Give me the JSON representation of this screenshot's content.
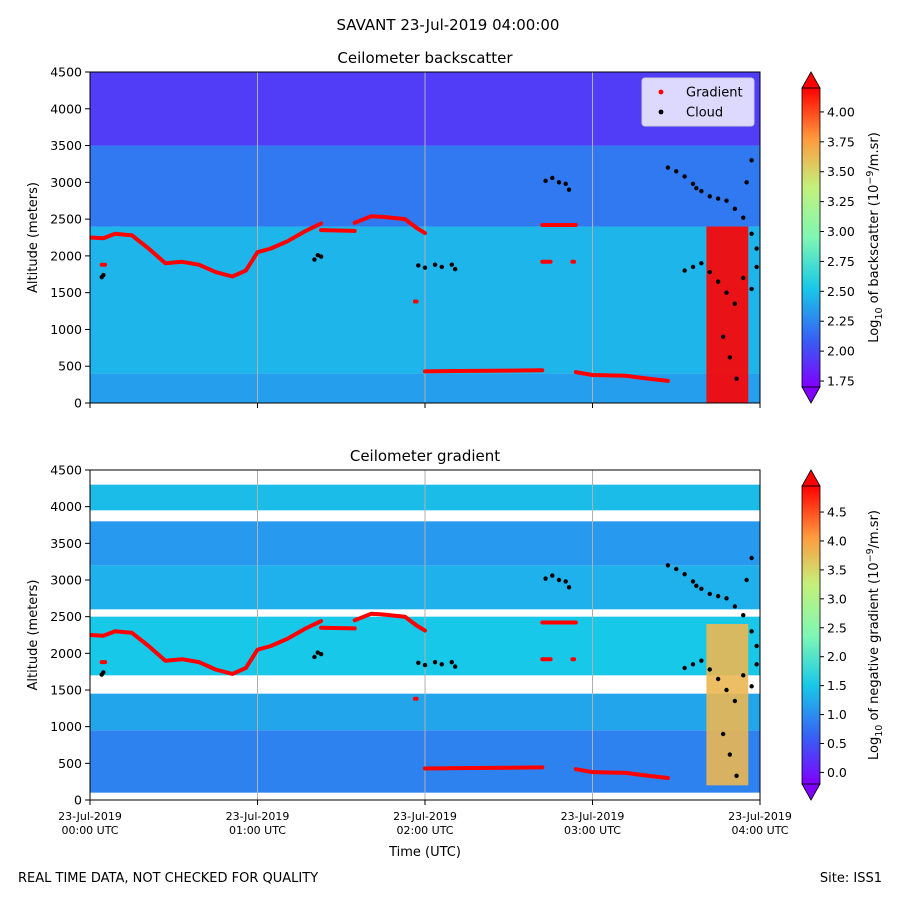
{
  "figure": {
    "title": "SAVANT 23-Jul-2019 04:00:00",
    "footer_left": "REAL TIME DATA, NOT CHECKED FOR QUALITY",
    "footer_right": "Site: ISS1"
  },
  "chart_data": [
    {
      "type": "heatmap",
      "title": "Ceilometer backscatter",
      "xlabel": "",
      "ylabel": "Altitude (meters)",
      "ylim": [
        0,
        4500
      ],
      "xlim": [
        0,
        4
      ],
      "y_ticks": [
        0,
        500,
        1000,
        1500,
        2000,
        2500,
        3000,
        3500,
        4000,
        4500
      ],
      "x_ticks": [
        0,
        1,
        2,
        3,
        4
      ],
      "x_ticklabels": [
        "",
        "",
        "",
        "",
        ""
      ],
      "grid": "vertical",
      "legend_placement": "top-right",
      "legend": [
        {
          "name": "Gradient",
          "color": "#ff0000",
          "marker": "dot"
        },
        {
          "name": "Cloud",
          "color": "#000000",
          "marker": "dot"
        }
      ],
      "colorbar": {
        "label": "Log10 of backscatter (10-9/m.sr)",
        "label_parts": [
          "Log",
          "10",
          " of backscatter (10",
          "−9",
          "/m.sr)"
        ],
        "range": [
          1.7,
          4.2
        ],
        "ticks": [
          1.75,
          2.0,
          2.25,
          2.5,
          2.75,
          3.0,
          3.25,
          3.5,
          3.75,
          4.0
        ],
        "ticklabels": [
          "1.75",
          "2.00",
          "2.25",
          "2.50",
          "2.75",
          "3.00",
          "3.25",
          "3.50",
          "3.75",
          "4.00"
        ]
      },
      "field": {
        "layers": [
          {
            "from": 0,
            "to": 400,
            "value": 2.35
          },
          {
            "from": 400,
            "to": 2400,
            "value": 2.45
          },
          {
            "from": 2400,
            "to": 3500,
            "value": 2.2
          },
          {
            "from": 3500,
            "to": 4500,
            "value": 1.95
          }
        ],
        "strong_return": {
          "x_from": 3.68,
          "x_to": 3.93,
          "alt_from": 0,
          "alt_to": 2400,
          "value": 4.3
        }
      },
      "series": [
        {
          "name": "Gradient",
          "color": "#ff0000",
          "segments": [
            [
              [
                0.0,
                2250
              ],
              [
                0.08,
                2240
              ],
              [
                0.15,
                2300
              ],
              [
                0.25,
                2280
              ],
              [
                0.35,
                2100
              ],
              [
                0.45,
                1900
              ],
              [
                0.55,
                1920
              ],
              [
                0.65,
                1880
              ],
              [
                0.75,
                1780
              ],
              [
                0.85,
                1720
              ],
              [
                0.93,
                1800
              ],
              [
                1.0,
                2050
              ],
              [
                1.08,
                2100
              ],
              [
                1.18,
                2200
              ],
              [
                1.28,
                2330
              ],
              [
                1.38,
                2440
              ]
            ],
            [
              [
                1.38,
                2350
              ],
              [
                1.58,
                2340
              ]
            ],
            [
              [
                1.58,
                2450
              ],
              [
                1.68,
                2540
              ],
              [
                1.75,
                2530
              ],
              [
                1.88,
                2500
              ],
              [
                1.95,
                2380
              ],
              [
                2.0,
                2310
              ]
            ],
            [
              [
                2.0,
                430
              ],
              [
                2.2,
                435
              ],
              [
                2.5,
                440
              ],
              [
                2.7,
                445
              ]
            ],
            [
              [
                2.9,
                420
              ],
              [
                3.0,
                380
              ],
              [
                3.2,
                370
              ],
              [
                3.3,
                340
              ],
              [
                3.45,
                300
              ]
            ],
            [
              [
                2.7,
                2420
              ],
              [
                2.9,
                2420
              ]
            ],
            [
              [
                2.7,
                1920
              ],
              [
                2.75,
                1920
              ]
            ],
            [
              [
                0.07,
                1880
              ],
              [
                0.09,
                1880
              ]
            ],
            [
              [
                1.94,
                1380
              ],
              [
                1.95,
                1380
              ]
            ],
            [
              [
                2.88,
                1920
              ],
              [
                2.89,
                1920
              ]
            ]
          ]
        },
        {
          "name": "Cloud",
          "color": "#000000",
          "points": [
            [
              0.07,
              1710
            ],
            [
              0.08,
              1740
            ],
            [
              1.34,
              1950
            ],
            [
              1.36,
              2010
            ],
            [
              1.38,
              1990
            ],
            [
              1.96,
              1870
            ],
            [
              2.0,
              1840
            ],
            [
              2.06,
              1880
            ],
            [
              2.1,
              1850
            ],
            [
              2.16,
              1880
            ],
            [
              2.18,
              1820
            ],
            [
              2.72,
              3020
            ],
            [
              2.76,
              3060
            ],
            [
              2.8,
              3000
            ],
            [
              2.84,
              2980
            ],
            [
              2.86,
              2900
            ],
            [
              3.45,
              3200
            ],
            [
              3.5,
              3150
            ],
            [
              3.55,
              3080
            ],
            [
              3.6,
              2980
            ],
            [
              3.62,
              2920
            ],
            [
              3.65,
              2880
            ],
            [
              3.7,
              2810
            ],
            [
              3.75,
              2780
            ],
            [
              3.8,
              2750
            ],
            [
              3.85,
              2640
            ],
            [
              3.9,
              2520
            ],
            [
              3.95,
              2300
            ],
            [
              3.98,
              2100
            ],
            [
              3.55,
              1800
            ],
            [
              3.6,
              1850
            ],
            [
              3.65,
              1900
            ],
            [
              3.7,
              1780
            ],
            [
              3.75,
              1650
            ],
            [
              3.8,
              1500
            ],
            [
              3.85,
              1350
            ],
            [
              3.9,
              1700
            ],
            [
              3.95,
              1550
            ],
            [
              3.98,
              1850
            ],
            [
              3.78,
              900
            ],
            [
              3.82,
              620
            ],
            [
              3.86,
              330
            ],
            [
              3.92,
              3000
            ],
            [
              3.95,
              3300
            ]
          ]
        }
      ]
    },
    {
      "type": "heatmap",
      "title": "Ceilometer gradient",
      "xlabel": "Time (UTC)",
      "ylabel": "Altitude (meters)",
      "ylim": [
        0,
        4500
      ],
      "xlim": [
        0,
        4
      ],
      "y_ticks": [
        0,
        500,
        1000,
        1500,
        2000,
        2500,
        3000,
        3500,
        4000,
        4500
      ],
      "x_ticks": [
        0,
        1,
        2,
        3,
        4
      ],
      "x_ticklabels": [
        [
          "23-Jul-2019",
          "00:00 UTC"
        ],
        [
          "23-Jul-2019",
          "01:00 UTC"
        ],
        [
          "23-Jul-2019",
          "02:00 UTC"
        ],
        [
          "23-Jul-2019",
          "03:00 UTC"
        ],
        [
          "23-Jul-2019",
          "04:00 UTC"
        ]
      ],
      "grid": "vertical",
      "colorbar": {
        "label": "Log10 of negative gradient (10-9/m.sr)",
        "label_parts": [
          "Log",
          "10",
          " of negative gradient (10",
          "−9",
          "/m.sr)"
        ],
        "range": [
          -0.2,
          4.95
        ],
        "ticks": [
          0.0,
          0.5,
          1.0,
          1.5,
          2.0,
          2.5,
          3.0,
          3.5,
          4.0,
          4.5
        ],
        "ticklabels": [
          "0.0",
          "0.5",
          "1.0",
          "1.5",
          "2.0",
          "2.5",
          "3.0",
          "3.5",
          "4.0",
          "4.5"
        ]
      },
      "field": {
        "layers": [
          {
            "from": 100,
            "to": 950,
            "value": 0.9
          },
          {
            "from": 950,
            "to": 1450,
            "value": 1.2
          },
          {
            "from": 1700,
            "to": 2500,
            "value": 1.5
          },
          {
            "from": 2600,
            "to": 3200,
            "value": 1.3
          },
          {
            "from": 3200,
            "to": 3800,
            "value": 1.1
          },
          {
            "from": 3950,
            "to": 4300,
            "value": 1.4
          }
        ],
        "strong_return": {
          "x_from": 3.68,
          "x_to": 3.93,
          "alt_from": 200,
          "alt_to": 2400,
          "value": 3.8
        }
      },
      "series": [
        {
          "name": "Gradient",
          "color": "#ff0000",
          "same_as_panel": 0
        },
        {
          "name": "Cloud",
          "color": "#000000",
          "same_as_panel": 0
        }
      ]
    }
  ]
}
